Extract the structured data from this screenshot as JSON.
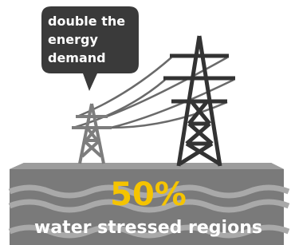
{
  "bubble": {
    "lines": [
      "double the",
      "energy",
      "demand"
    ]
  },
  "stat": {
    "value": "50%",
    "label": "water stressed regions"
  }
}
